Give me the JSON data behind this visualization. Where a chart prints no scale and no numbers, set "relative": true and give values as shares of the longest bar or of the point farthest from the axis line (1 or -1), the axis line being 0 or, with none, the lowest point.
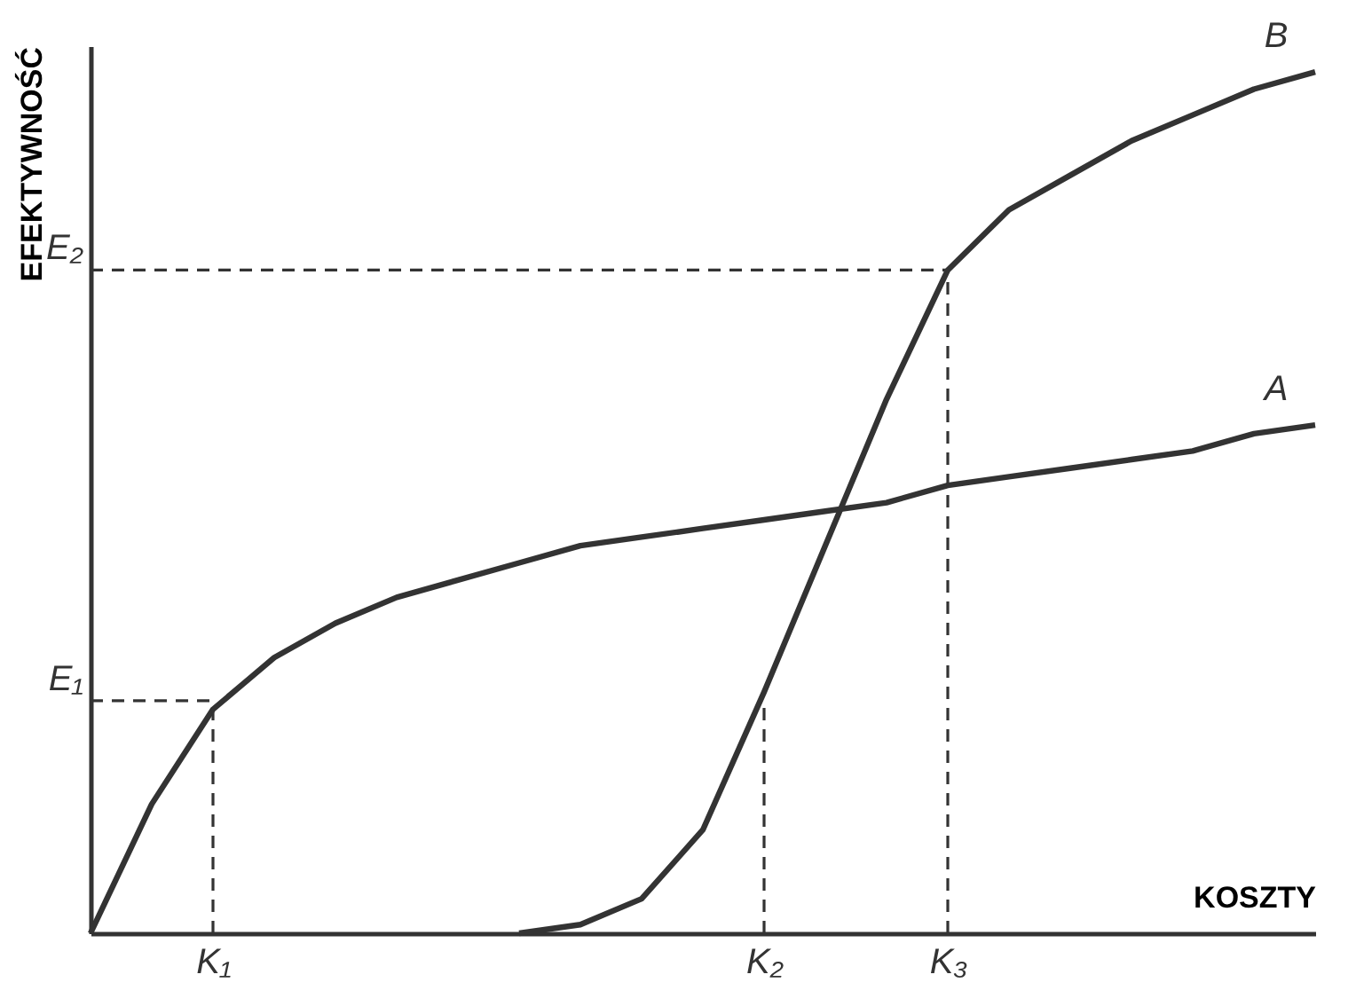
{
  "chart_data": {
    "type": "line",
    "relative": true,
    "xlabel": "KOSZTY",
    "ylabel": "EFEKTYWNOŚĆ",
    "tick_labels": "x",
    "categories": [
      null,
      null,
      "K₁",
      null,
      null,
      null,
      null,
      null,
      null,
      null,
      null,
      "K₂",
      null,
      null,
      "K₃",
      null,
      null,
      null,
      null,
      null,
      null
    ],
    "series": [
      {
        "name": "A",
        "color": "#333333",
        "values": [
          0,
          0.15,
          0.26,
          0.32,
          0.36,
          0.39,
          0.41,
          0.43,
          0.45,
          0.46,
          0.47,
          0.48,
          0.49,
          0.5,
          0.52,
          0.53,
          0.54,
          0.55,
          0.56,
          0.58,
          0.59
        ]
      },
      {
        "name": "B",
        "color": "#333333",
        "values": [
          null,
          null,
          null,
          null,
          null,
          null,
          null,
          0,
          0.01,
          0.04,
          0.12,
          0.28,
          0.45,
          0.62,
          0.77,
          0.84,
          0.88,
          0.92,
          0.95,
          0.98,
          1
        ]
      }
    ],
    "ref_lines": [
      {
        "axis": "y",
        "value": 0.27,
        "label": "E₁",
        "color": "#333333",
        "line_style": "dashed"
      },
      {
        "axis": "y",
        "value": 0.77,
        "label": "E₂",
        "color": "#333333",
        "line_style": "dashed"
      },
      {
        "axis": "x",
        "value": "K₁",
        "color": "#333333",
        "line_style": "dashed"
      },
      {
        "axis": "x",
        "value": "K₂",
        "color": "#333333",
        "line_style": "dashed"
      },
      {
        "axis": "x",
        "value": "K₃",
        "color": "#333333",
        "line_style": "dashed"
      }
    ]
  }
}
